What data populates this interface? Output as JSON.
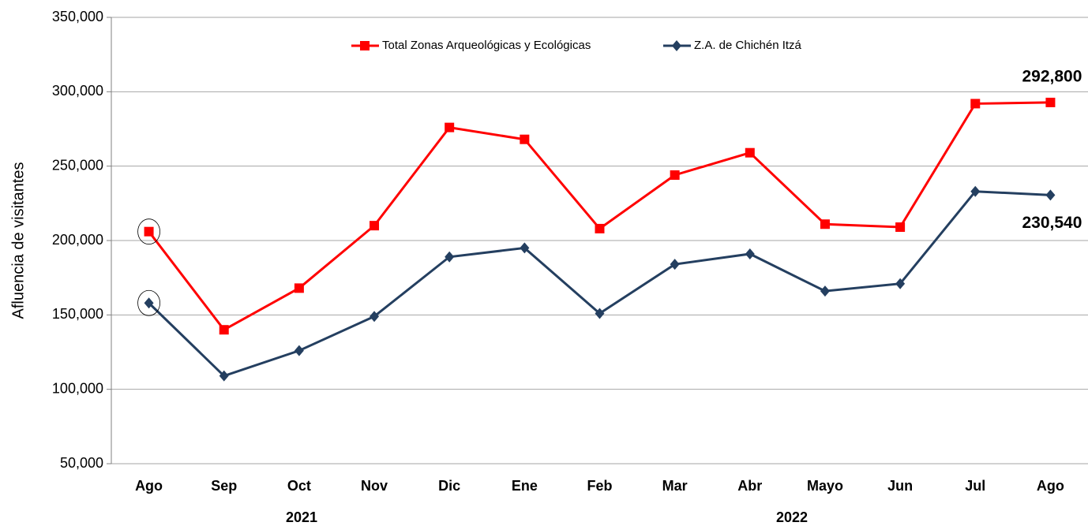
{
  "chart_data": {
    "type": "line",
    "y_label": "Afluencia de visitantes",
    "categories": [
      "Ago",
      "Sep",
      "Oct",
      "Nov",
      "Dic",
      "Ene",
      "Feb",
      "Mar",
      "Abr",
      "Mayo",
      "Jun",
      "Jul",
      "Ago"
    ],
    "years": [
      "2021",
      "2022"
    ],
    "series": [
      {
        "name": "Total Zonas Arqueológicas y Ecológicas",
        "color": "#ff0000",
        "marker": "square",
        "values": [
          206000,
          140000,
          168000,
          210000,
          276000,
          268000,
          208000,
          244000,
          259000,
          211000,
          209000,
          292000,
          292800
        ],
        "value_labels": [
          null,
          null,
          null,
          null,
          null,
          null,
          null,
          null,
          null,
          null,
          null,
          null,
          "292,800"
        ]
      },
      {
        "name": "Z.A. de Chichén Itzá",
        "color": "#243f60",
        "marker": "diamond",
        "values": [
          158000,
          109000,
          126000,
          149000,
          189000,
          195000,
          151000,
          184000,
          191000,
          166000,
          171000,
          233000,
          230540
        ],
        "value_labels": [
          null,
          null,
          null,
          null,
          null,
          null,
          null,
          null,
          null,
          null,
          null,
          null,
          "230,540"
        ]
      }
    ],
    "ylim": [
      50000,
      350000
    ],
    "yticks": [
      {
        "value": 50000,
        "label": "50,000"
      },
      {
        "value": 100000,
        "label": "100,000"
      },
      {
        "value": 150000,
        "label": "150,000"
      },
      {
        "value": 200000,
        "label": "200,000"
      },
      {
        "value": 250000,
        "label": "250,000"
      },
      {
        "value": 300000,
        "label": "300,000"
      },
      {
        "value": 350000,
        "label": "350,000"
      }
    ],
    "grid": true,
    "legend": "top"
  }
}
